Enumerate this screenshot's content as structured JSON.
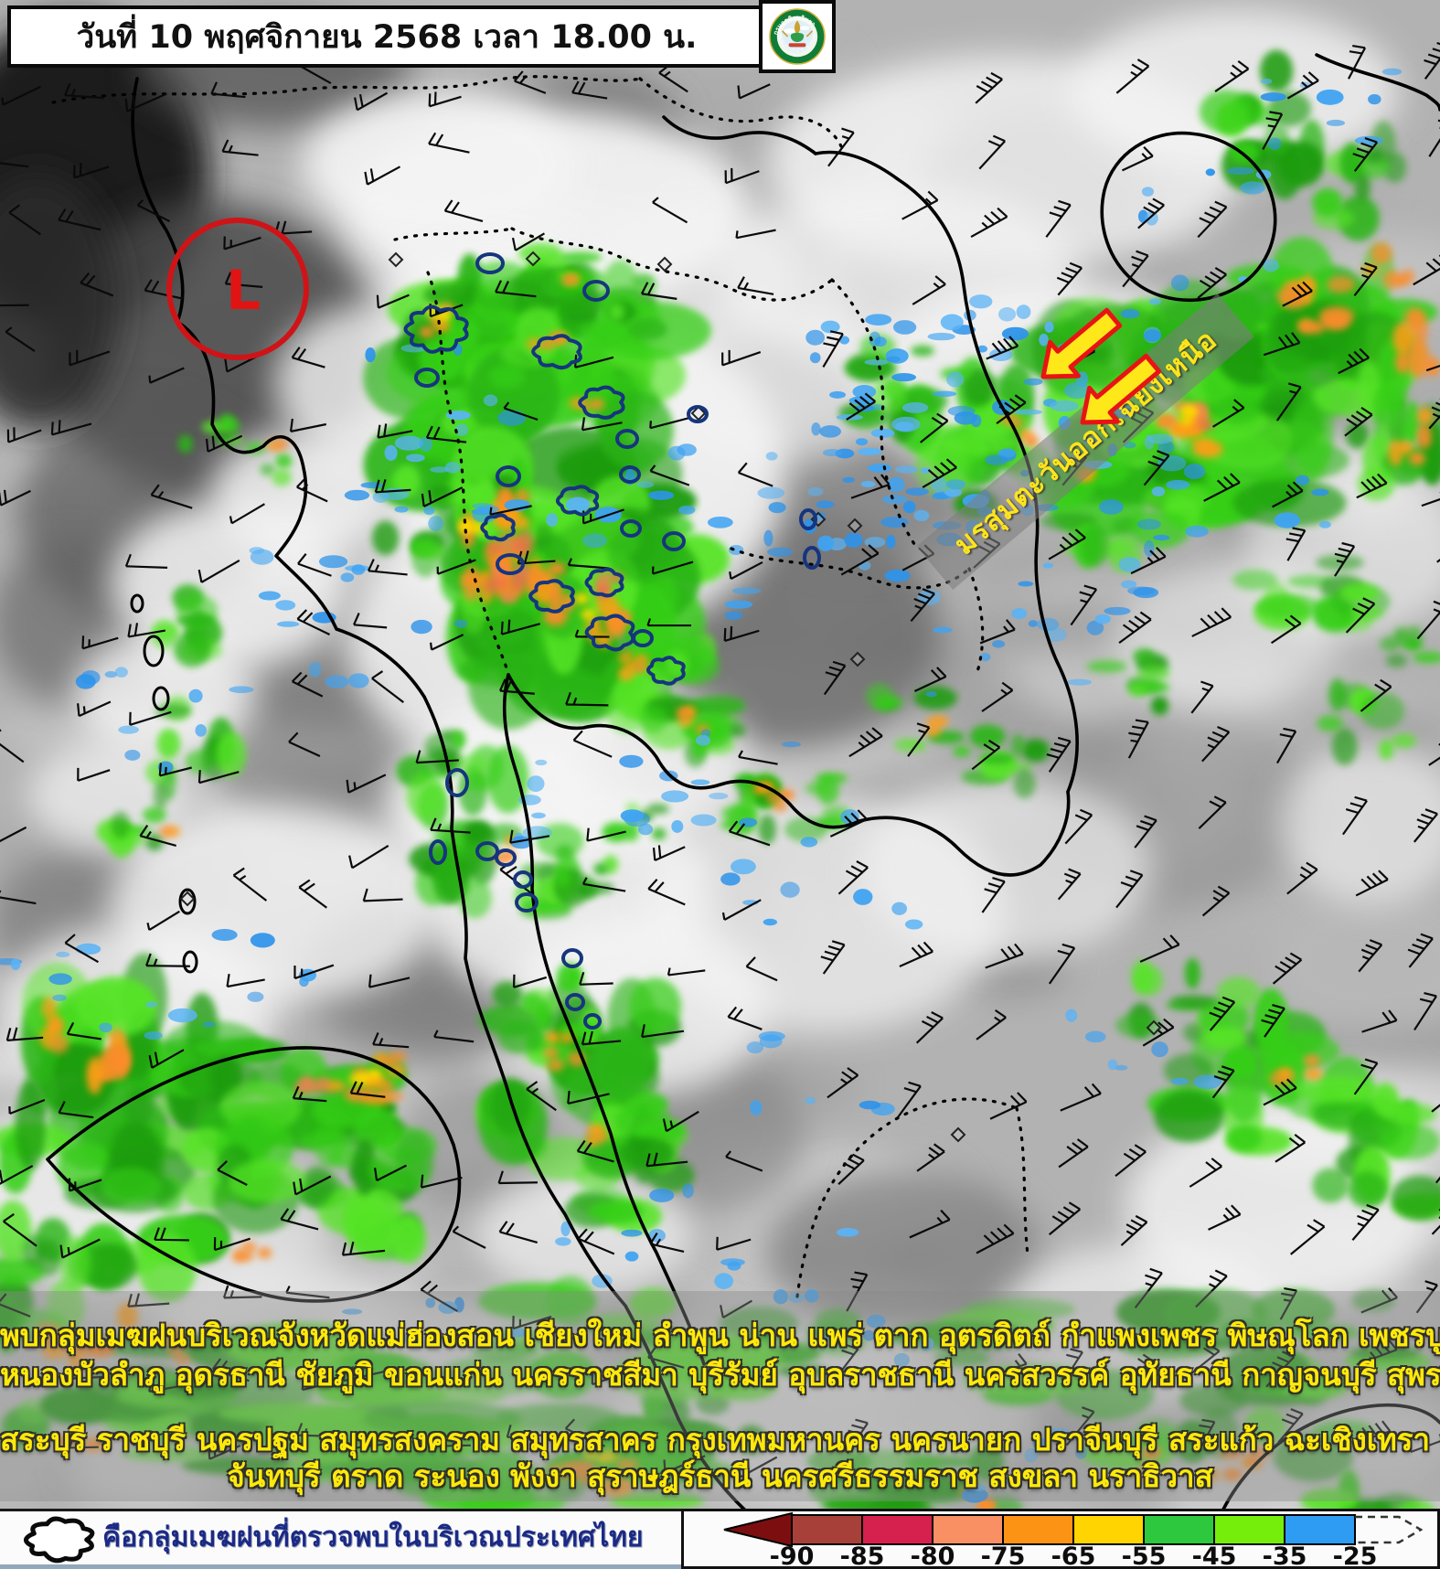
{
  "header": {
    "title": "วันที่ 10 พฤศจิกายน 2568 เวลา 18.00 น."
  },
  "logo": {
    "ring_top_text": "กรมอุตุนิยมวิทยา",
    "ring_bottom_text": "METEOROLOGICAL DEPARTMENT"
  },
  "map": {
    "low_pressure_symbol": "L",
    "monsoon_label": "มรสุมตะวันออกเฉียงเหนือ"
  },
  "announcement": {
    "lines": [
      "พบกลุ่มเมฆฝนบริเวณจังหวัดแม่ฮ่องสอน เชียงใหม่ ลำพูน น่าน แพร่ ตาก อุตรดิตถ์ กำแพงเพชร พิษณุโลก เพชรบูรณ์ เลย",
      "หนองบัวลำภู อุดรธานี ชัยภูมิ ขอนแก่น นครราชสีมา บุรีรัมย์ อุบลราชธานี นครสวรรค์ อุทัยธานี กาญจนบุรี สุพรรณบุรี ลพบุรี",
      "สระบุรี ราชบุรี นครปฐม สมุทรสงคราม สมุทรสาคร กรุงเทพมหานคร นครนายก ปราจีนบุรี สระแก้ว ฉะเชิงเทรา ระยอง",
      "จันทบุรี ตราด ระนอง พังงา สุราษฎร์ธานี นครศรีธรรมราช สงขลา นราธิวาส"
    ]
  },
  "legend": {
    "caption": "คือกลุ่มเมฆฝนที่ตรวจพบในบริเวณประเทศไทย",
    "scale": {
      "tick_labels": [
        "-90",
        "-85",
        "-80",
        "-75",
        "-65",
        "-55",
        "-45",
        "-35",
        "-25"
      ],
      "segment_colors": [
        "#a8403a",
        "#d6204e",
        "#f99063",
        "#fd9314",
        "#ffd400",
        "#2dc83d",
        "#76ee0b",
        "#2e9cf3"
      ],
      "underflow_color": "#7c0e10"
    }
  },
  "accent_colors": {
    "low_marker": "#cf1418",
    "arrow_fill": "#ffe81a",
    "arrow_outline": "#e81414",
    "banner_text": "#ffe41a",
    "announcement_text": "#ffe90a",
    "caption_text": "#1b2a85",
    "cloud_outline": "#16357e"
  }
}
